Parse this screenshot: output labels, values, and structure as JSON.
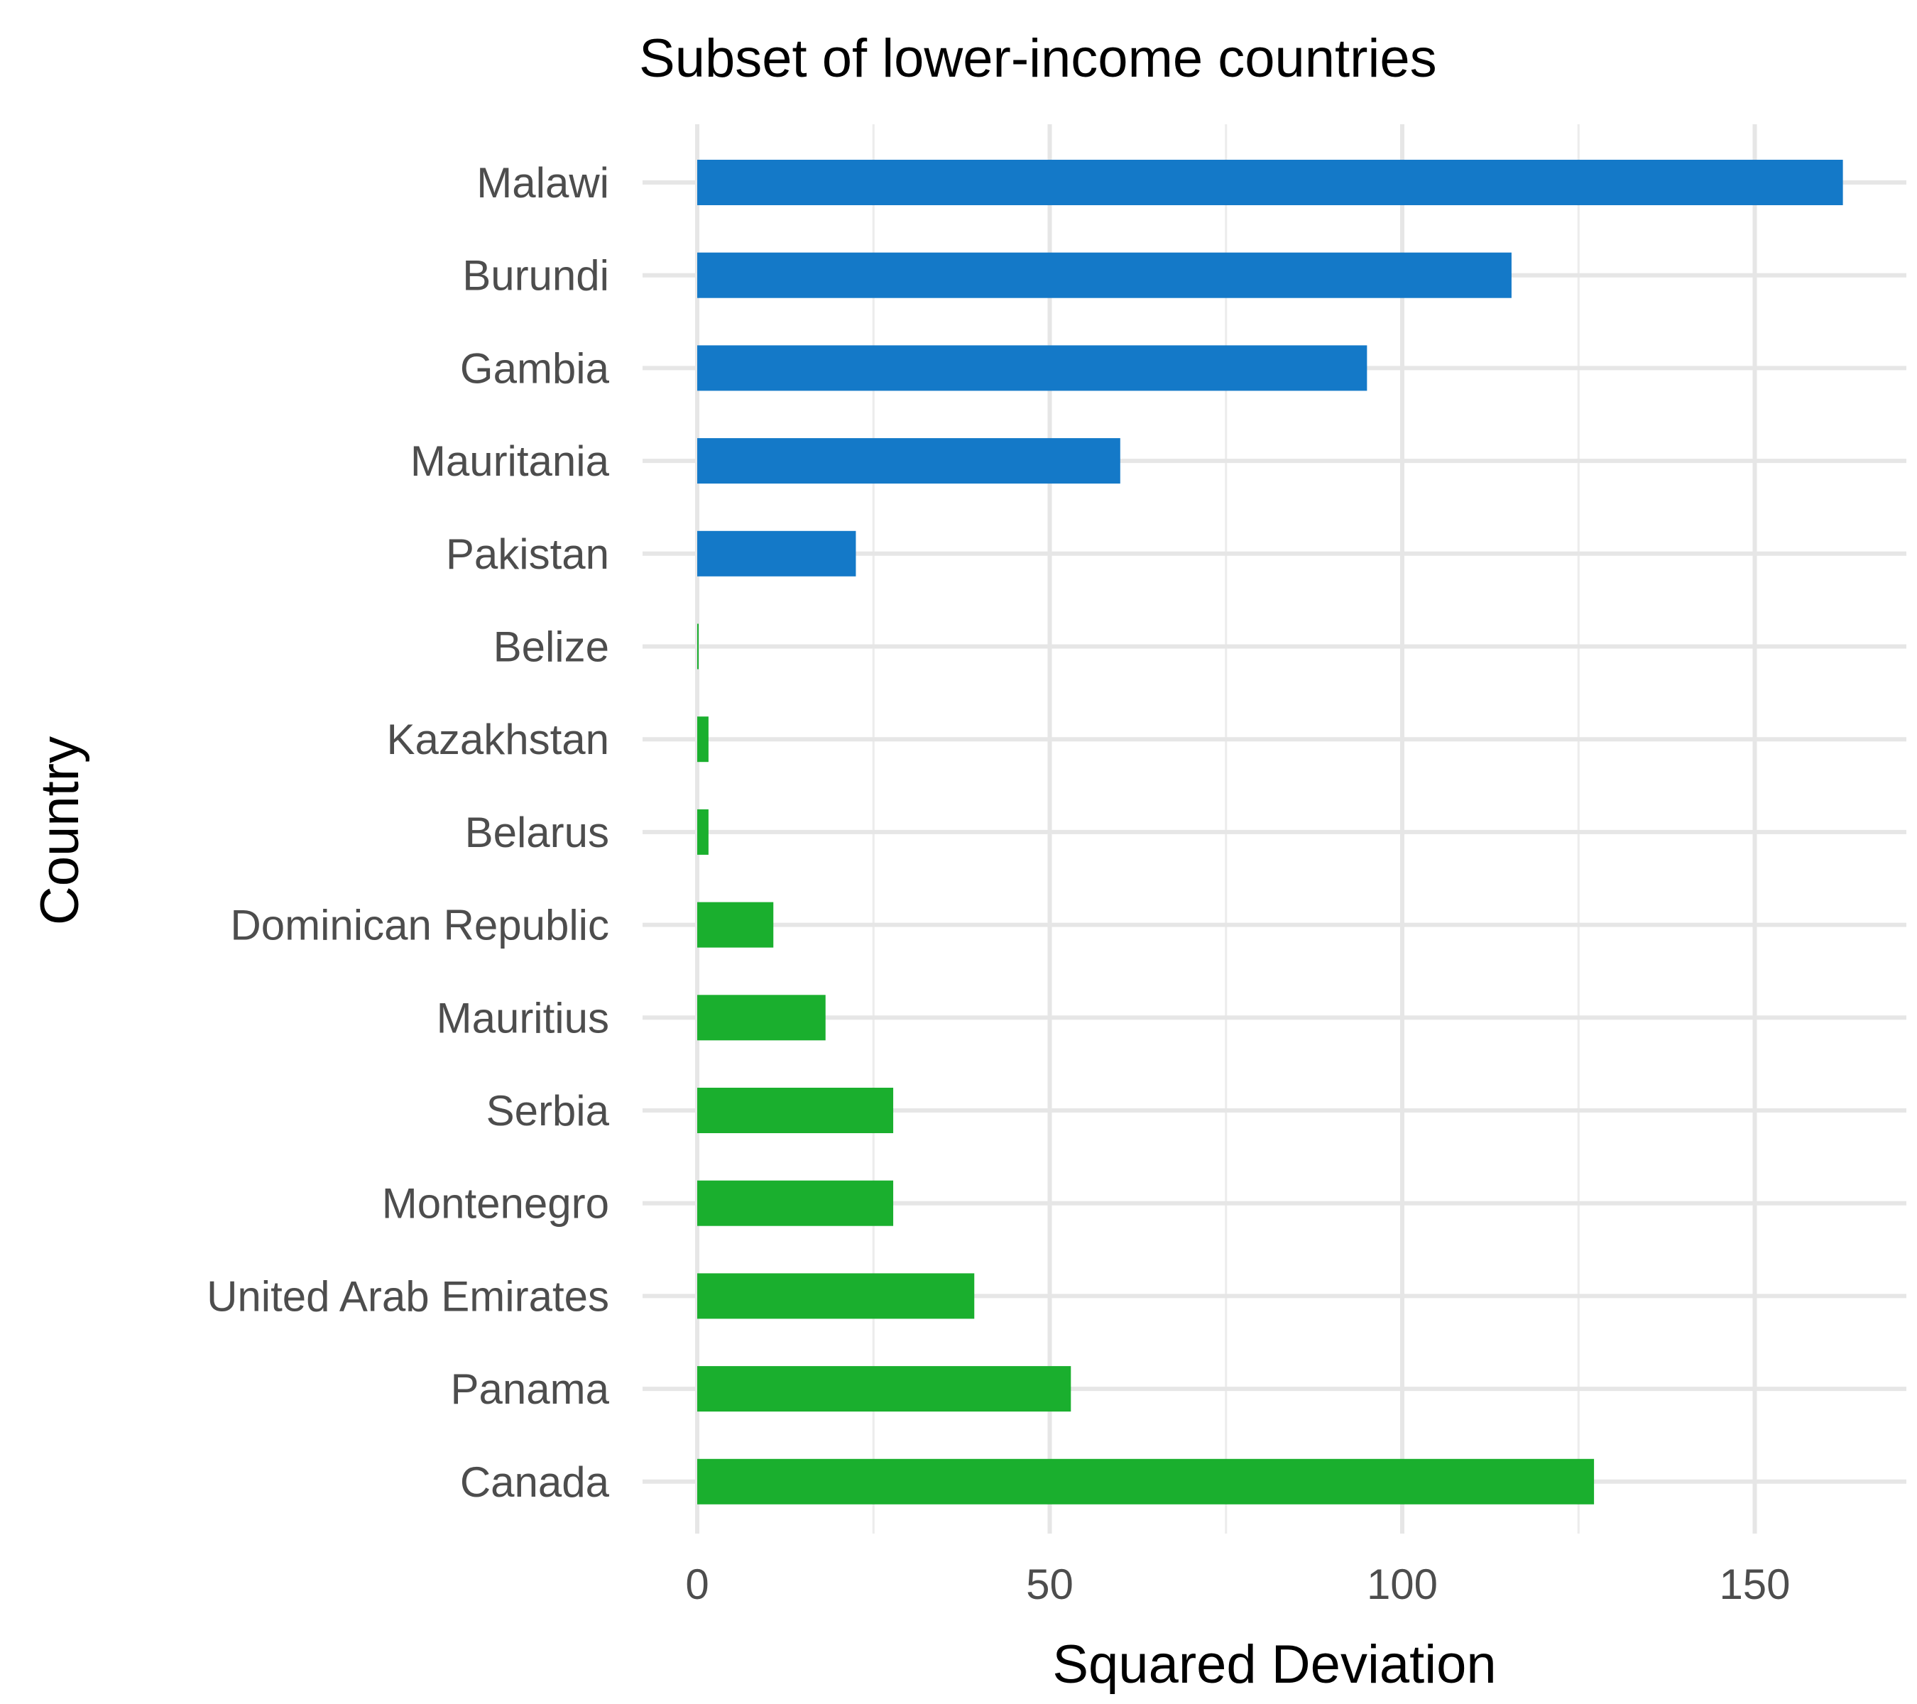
{
  "chart_data": {
    "type": "bar",
    "orientation": "horizontal",
    "title": "Subset of lower-income countries",
    "xlabel": "Squared Deviation",
    "ylabel": "Country",
    "xlim": [
      0,
      170
    ],
    "xticks": [
      0,
      50,
      100,
      150
    ],
    "grid": true,
    "legend": "none",
    "colors": {
      "positive": "#1479c8",
      "negative": "#1aaf2e"
    },
    "categories": [
      "Malawi",
      "Burundi",
      "Gambia",
      "Mauritania",
      "Pakistan",
      "Belize",
      "Kazakhstan",
      "Belarus",
      "Dominican Republic",
      "Mauritius",
      "Serbia",
      "Montenegro",
      "United Arab Emirates",
      "Panama",
      "Canada"
    ],
    "values": [
      162.5,
      115.5,
      95,
      60,
      22.5,
      0.2,
      1.6,
      1.6,
      10.8,
      18.2,
      27.8,
      27.8,
      39.3,
      53,
      127.2
    ],
    "bar_color_group": [
      "positive",
      "positive",
      "positive",
      "positive",
      "positive",
      "negative",
      "negative",
      "negative",
      "negative",
      "negative",
      "negative",
      "negative",
      "negative",
      "negative",
      "negative"
    ]
  }
}
